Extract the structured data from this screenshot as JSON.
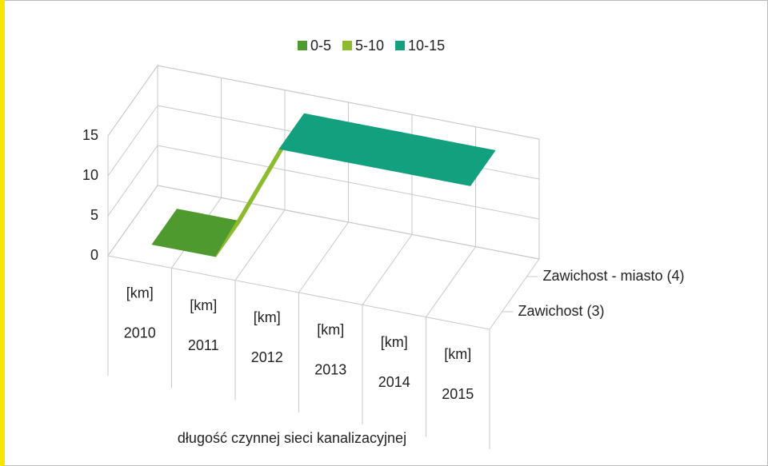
{
  "chart_data": {
    "type": "surface3d",
    "axis_title": "długość czynnej sieci kanalizacyjnej",
    "categories": [
      "2010",
      "2011",
      "2012",
      "2013",
      "2014",
      "2015"
    ],
    "category_sublabels": [
      "[km]",
      "[km]",
      "[km]",
      "[km]",
      "[km]",
      "[km]"
    ],
    "series": [
      {
        "name": "Zawichost (3)",
        "values": [
          0,
          0,
          15,
          15,
          15,
          15
        ]
      },
      {
        "name": "Zawichost - miasto (4)",
        "values": [
          0,
          0,
          15,
          15,
          15,
          15
        ]
      }
    ],
    "legend": [
      {
        "name": "0-5",
        "color": "#4e9a2e"
      },
      {
        "name": "5-10",
        "color": "#8dbb2e"
      },
      {
        "name": "10-15",
        "color": "#12a07e"
      }
    ],
    "zlim": [
      0,
      15
    ],
    "zticks": [
      0,
      5,
      10,
      15
    ],
    "grid": true
  }
}
